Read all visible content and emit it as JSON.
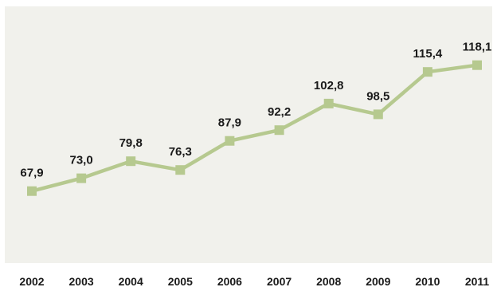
{
  "chart_data": {
    "type": "line",
    "title": "",
    "xlabel": "",
    "ylabel": "",
    "categories": [
      "2002",
      "2003",
      "2004",
      "2005",
      "2006",
      "2007",
      "2008",
      "2009",
      "2010",
      "2011"
    ],
    "values": [
      67.9,
      73.0,
      79.8,
      76.3,
      87.9,
      92.2,
      102.8,
      98.5,
      115.4,
      118.1
    ],
    "data_labels": [
      "67,9",
      "73,0",
      "79,8",
      "76,3",
      "87,9",
      "92,2",
      "102,8",
      "98,5",
      "115,4",
      "118,1"
    ],
    "ylim": [
      50,
      125
    ],
    "grid": false,
    "legend": "none",
    "colors": {
      "plot_background": "#f1f1ec",
      "line": "#b6c98f",
      "marker": "#b6c98f",
      "text": "#1a1a1a"
    }
  }
}
